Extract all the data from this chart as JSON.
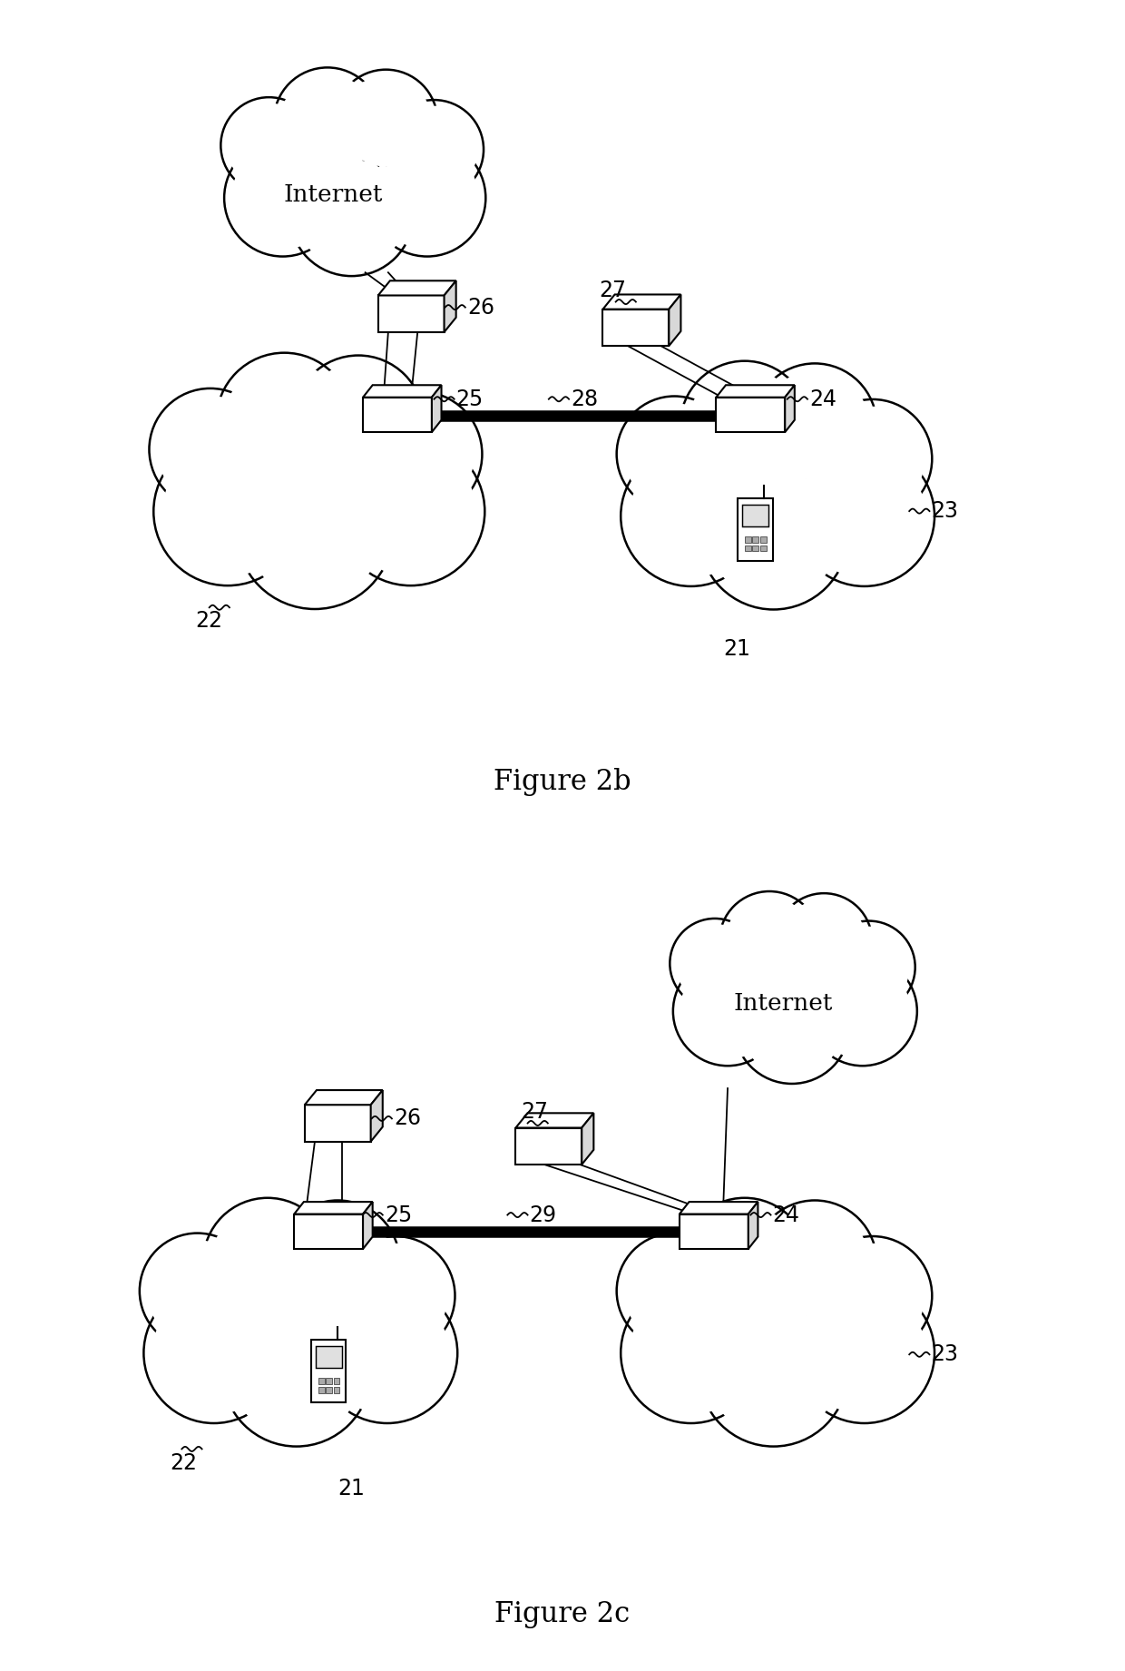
{
  "fig_width": 12.4,
  "fig_height": 18.41,
  "bg_color": "#ffffff",
  "fig2b_caption": "Figure 2b",
  "fig2c_caption": "Figure 2c",
  "label_fontsize": 17,
  "caption_fontsize": 22,
  "internet_label": "Internet",
  "lw_cloud": 1.8,
  "lw_dev": 1.5,
  "lw_line": 1.3,
  "tunnel_lw": 9
}
